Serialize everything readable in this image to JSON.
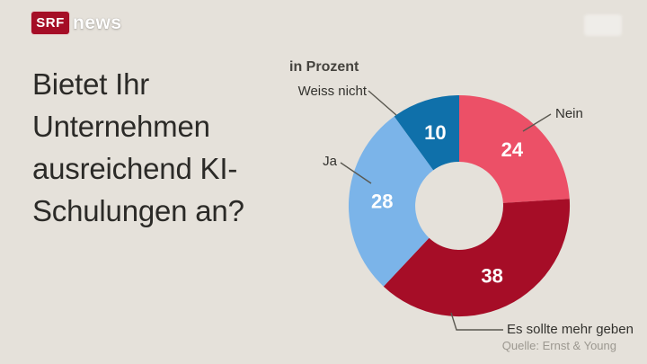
{
  "header": {
    "logo": {
      "srf": "SRF",
      "news": "news"
    },
    "brand_red": "#A50D26"
  },
  "main": {
    "question": "Bietet Ihr Unternehmen ausreichend KI-Schulungen an?"
  },
  "chart_data": {
    "type": "pie",
    "subtype": "donut",
    "title": "in Prozent",
    "unit": "Prozent",
    "direction": "clockwise",
    "start_angle_deg": 0,
    "total": 100,
    "segments": [
      {
        "label": "Nein",
        "value": 24,
        "color": "#EC5067"
      },
      {
        "label": "Es sollte mehr geben",
        "value": 38,
        "color": "#A60D27"
      },
      {
        "label": "Ja",
        "value": 28,
        "color": "#7BB4E9"
      },
      {
        "label": "Weiss nicht",
        "value": 10,
        "color": "#0F70AA"
      }
    ],
    "source": "Quelle: Ernst & Young"
  },
  "colors": {
    "background": "#E5E1DA",
    "headline_text": "#2B2A27",
    "label_text": "#33322E",
    "source_text": "#9C9890",
    "value_text": "#FFFFFF"
  }
}
